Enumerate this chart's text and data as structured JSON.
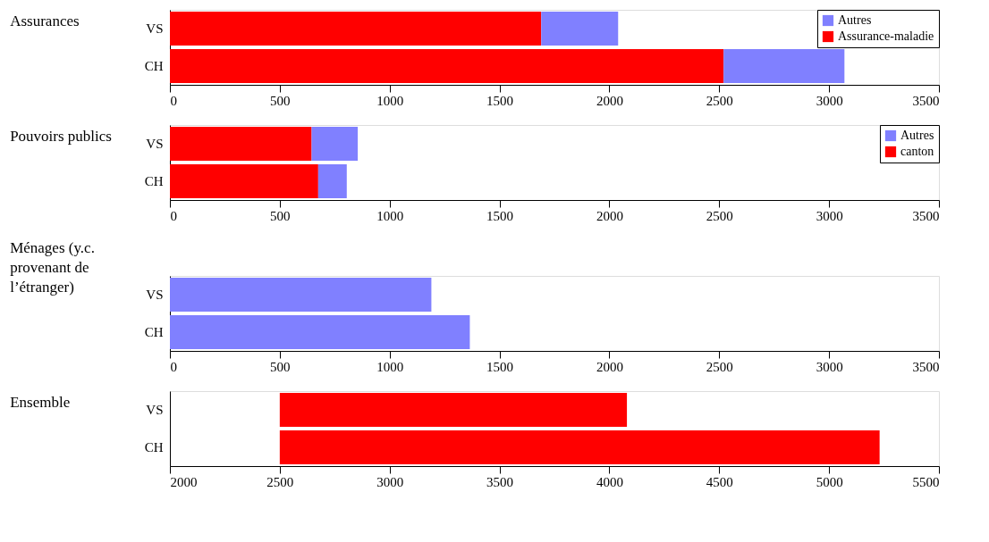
{
  "chart_data": [
    {
      "type": "bar",
      "title": "Assurances",
      "orientation": "horizontal",
      "stacked": true,
      "categories": [
        "VS",
        "CH"
      ],
      "xlim": [
        0,
        3500
      ],
      "xticks": [
        0,
        500,
        1000,
        1500,
        2000,
        2500,
        3000,
        3500
      ],
      "grid": false,
      "legend": "top right",
      "series": [
        {
          "name": "Assurance-maladie",
          "color": "#ff0000",
          "values": [
            1690,
            2520
          ]
        },
        {
          "name": "Autres",
          "color": "#8080ff",
          "values": [
            350,
            550
          ]
        }
      ]
    },
    {
      "type": "bar",
      "title": "Pouvoirs publics",
      "orientation": "horizontal",
      "stacked": true,
      "categories": [
        "VS",
        "CH"
      ],
      "xlim": [
        0,
        3500
      ],
      "xticks": [
        0,
        500,
        1000,
        1500,
        2000,
        2500,
        3000,
        3500
      ],
      "grid": false,
      "legend": "top right",
      "series": [
        {
          "name": "canton",
          "color": "#ff0000",
          "values": [
            645,
            675
          ]
        },
        {
          "name": "Autres",
          "color": "#8080ff",
          "values": [
            210,
            130
          ]
        }
      ]
    },
    {
      "type": "bar",
      "title": "Ménages (y.c. provenant de l’étranger)",
      "orientation": "horizontal",
      "categories": [
        "VS",
        "CH"
      ],
      "xlim": [
        0,
        3500
      ],
      "xticks": [
        0,
        500,
        1000,
        1500,
        2000,
        2500,
        3000,
        3500
      ],
      "grid": false,
      "color": "#8080ff",
      "values": [
        1190,
        1365
      ]
    },
    {
      "type": "bar",
      "title": "Ensemble",
      "orientation": "horizontal",
      "categories": [
        "VS",
        "CH"
      ],
      "base": [
        2500,
        2500
      ],
      "xlim": [
        2000,
        5500
      ],
      "xticks": [
        2000,
        2500,
        3000,
        3500,
        4000,
        4500,
        5000,
        5500
      ],
      "grid": false,
      "color": "#ff0000",
      "values": [
        1580,
        2730
      ]
    }
  ]
}
